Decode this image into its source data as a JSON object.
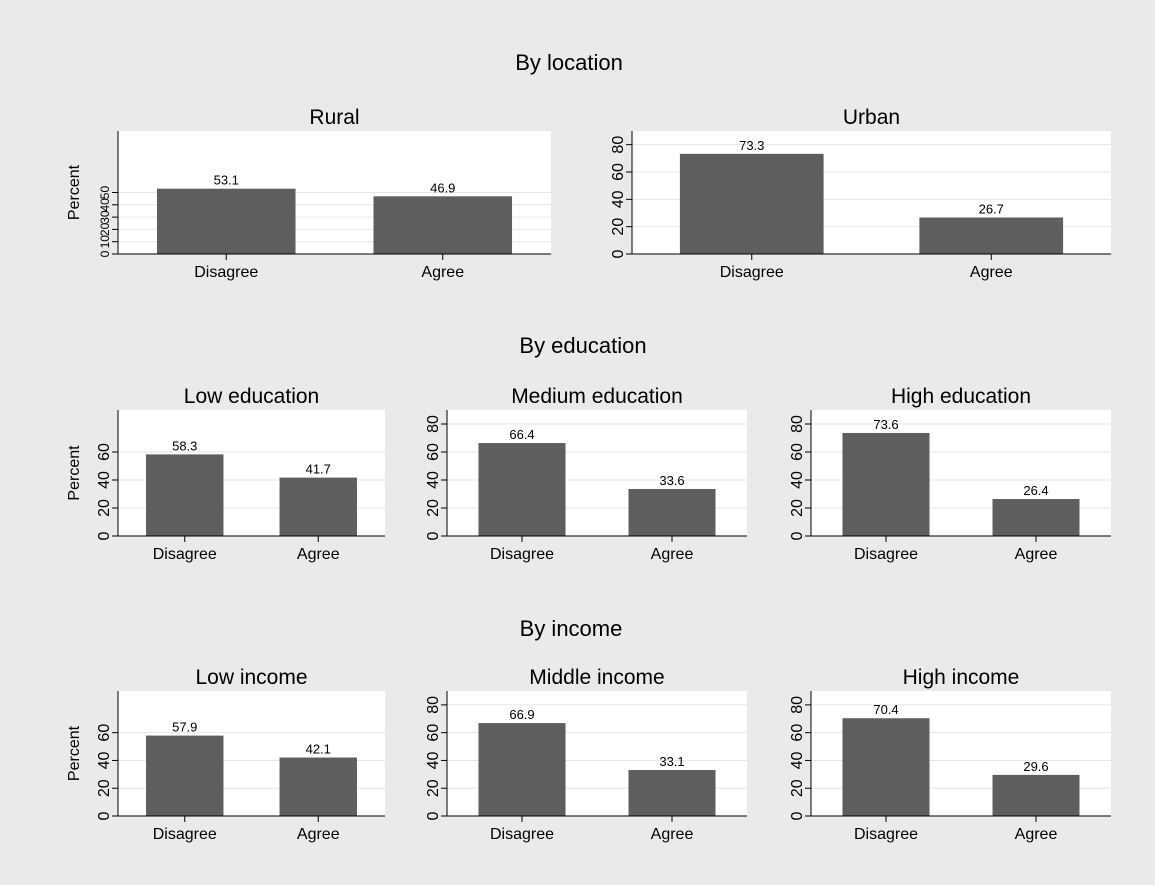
{
  "colors": {
    "background": "#eaeaea",
    "panel": "#ffffff",
    "bar": "#5e5e5e",
    "grid": "#e6e6e6",
    "axis": "#000000"
  },
  "groups": [
    {
      "title": "By location"
    },
    {
      "title": "By education"
    },
    {
      "title": "By income"
    }
  ],
  "chart_data": [
    {
      "type": "bar",
      "group": "By location",
      "title": "Rural",
      "ylabel": "Percent",
      "categories": [
        "Disagree",
        "Agree"
      ],
      "values": [
        53.1,
        46.9
      ],
      "value_labels": [
        "53.1",
        "46.9"
      ],
      "ylim": [
        0,
        100
      ],
      "yticks": [
        0,
        10,
        20,
        30,
        40,
        50
      ],
      "ytick_labels": [
        "0",
        "10",
        "20",
        "30",
        "40",
        "50"
      ],
      "grid": true
    },
    {
      "type": "bar",
      "group": "By location",
      "title": "Urban",
      "ylabel": "",
      "categories": [
        "Disagree",
        "Agree"
      ],
      "values": [
        73.3,
        26.7
      ],
      "value_labels": [
        "73.3",
        "26.7"
      ],
      "ylim": [
        0,
        90
      ],
      "yticks": [
        0,
        20,
        40,
        60,
        80
      ],
      "ytick_labels": [
        "0",
        "20",
        "40",
        "60",
        "80"
      ],
      "grid": true
    },
    {
      "type": "bar",
      "group": "By education",
      "title": "Low education",
      "ylabel": "Percent",
      "categories": [
        "Disagree",
        "Agree"
      ],
      "values": [
        58.3,
        41.7
      ],
      "value_labels": [
        "58.3",
        "41.7"
      ],
      "ylim": [
        0,
        90
      ],
      "yticks": [
        0,
        20,
        40,
        60
      ],
      "ytick_labels": [
        "0",
        "20",
        "40",
        "60"
      ],
      "grid": true
    },
    {
      "type": "bar",
      "group": "By education",
      "title": "Medium education",
      "ylabel": "",
      "categories": [
        "Disagree",
        "Agree"
      ],
      "values": [
        66.4,
        33.6
      ],
      "value_labels": [
        "66.4",
        "33.6"
      ],
      "ylim": [
        0,
        90
      ],
      "yticks": [
        0,
        20,
        40,
        60,
        80
      ],
      "ytick_labels": [
        "0",
        "20",
        "40",
        "60",
        "80"
      ],
      "grid": true
    },
    {
      "type": "bar",
      "group": "By education",
      "title": "High education",
      "ylabel": "",
      "categories": [
        "Disagree",
        "Agree"
      ],
      "values": [
        73.6,
        26.4
      ],
      "value_labels": [
        "73.6",
        "26.4"
      ],
      "ylim": [
        0,
        90
      ],
      "yticks": [
        0,
        20,
        40,
        60,
        80
      ],
      "ytick_labels": [
        "0",
        "20",
        "40",
        "60",
        "80"
      ],
      "grid": true
    },
    {
      "type": "bar",
      "group": "By income",
      "title": "Low income",
      "ylabel": "Percent",
      "categories": [
        "Disagree",
        "Agree"
      ],
      "values": [
        57.9,
        42.1
      ],
      "value_labels": [
        "57.9",
        "42.1"
      ],
      "ylim": [
        0,
        90
      ],
      "yticks": [
        0,
        20,
        40,
        60
      ],
      "ytick_labels": [
        "0",
        "20",
        "40",
        "60"
      ],
      "grid": true
    },
    {
      "type": "bar",
      "group": "By income",
      "title": "Middle income",
      "ylabel": "",
      "categories": [
        "Disagree",
        "Agree"
      ],
      "values": [
        66.9,
        33.1
      ],
      "value_labels": [
        "66.9",
        "33.1"
      ],
      "ylim": [
        0,
        90
      ],
      "yticks": [
        0,
        20,
        40,
        60,
        80
      ],
      "ytick_labels": [
        "0",
        "20",
        "40",
        "60",
        "80"
      ],
      "grid": true
    },
    {
      "type": "bar",
      "group": "By income",
      "title": "High income",
      "ylabel": "",
      "categories": [
        "Disagree",
        "Agree"
      ],
      "values": [
        70.4,
        29.6
      ],
      "value_labels": [
        "70.4",
        "29.6"
      ],
      "ylim": [
        0,
        90
      ],
      "yticks": [
        0,
        20,
        40,
        60,
        80
      ],
      "ytick_labels": [
        "0",
        "20",
        "40",
        "60",
        "80"
      ],
      "grid": true
    }
  ]
}
